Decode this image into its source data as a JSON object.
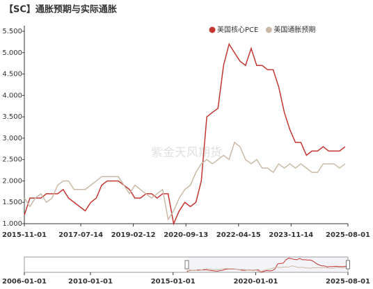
{
  "chart_data": {
    "type": "line",
    "title": "【SC】通胀预期与实际通胀",
    "watermark": "紫金天风期货",
    "x": [
      "2015-11-01",
      "2016-01-01",
      "2016-03-01",
      "2016-05-01",
      "2016-07-01",
      "2016-09-01",
      "2016-11-01",
      "2017-01-01",
      "2017-03-01",
      "2017-05-01",
      "2017-07-01",
      "2017-09-01",
      "2017-11-01",
      "2018-01-01",
      "2018-03-01",
      "2018-05-01",
      "2018-07-01",
      "2018-09-01",
      "2018-11-01",
      "2019-01-01",
      "2019-03-01",
      "2019-05-01",
      "2019-07-01",
      "2019-09-01",
      "2019-11-01",
      "2020-01-01",
      "2020-03-01",
      "2020-05-01",
      "2020-07-01",
      "2020-09-01",
      "2020-11-01",
      "2021-01-01",
      "2021-03-01",
      "2021-05-01",
      "2021-07-01",
      "2021-09-01",
      "2021-11-01",
      "2022-01-01",
      "2022-03-01",
      "2022-05-01",
      "2022-07-01",
      "2022-09-01",
      "2022-11-01",
      "2023-01-01",
      "2023-03-01",
      "2023-05-01",
      "2023-07-01",
      "2023-09-01",
      "2023-11-01",
      "2024-01-01",
      "2024-03-01",
      "2024-05-01",
      "2024-07-01",
      "2024-09-01",
      "2024-11-01",
      "2025-01-01",
      "2025-03-01",
      "2025-05-01",
      "2025-07-01"
    ],
    "series": [
      {
        "name": "美国核心PCE",
        "color": "#c23531",
        "values": [
          1.2,
          1.6,
          1.6,
          1.6,
          1.7,
          1.7,
          1.7,
          1.8,
          1.6,
          1.5,
          1.4,
          1.3,
          1.5,
          1.6,
          1.9,
          2.0,
          2.0,
          2.0,
          1.9,
          1.8,
          1.6,
          1.6,
          1.7,
          1.7,
          1.6,
          1.7,
          1.7,
          1.0,
          1.3,
          1.5,
          1.4,
          1.5,
          2.0,
          3.5,
          3.6,
          3.7,
          4.7,
          5.2,
          5.0,
          4.8,
          4.7,
          5.1,
          4.7,
          4.7,
          4.6,
          4.6,
          4.2,
          3.6,
          3.2,
          2.9,
          2.9,
          2.6,
          2.7,
          2.7,
          2.8,
          2.7,
          2.7,
          2.7,
          2.8
        ]
      },
      {
        "name": "美国通胀预期",
        "color": "#c9b9a6",
        "values": [
          1.6,
          1.4,
          1.6,
          1.7,
          1.5,
          1.6,
          1.9,
          2.0,
          2.0,
          1.8,
          1.8,
          1.8,
          1.9,
          2.0,
          2.1,
          2.1,
          2.1,
          2.1,
          1.9,
          1.7,
          1.9,
          1.8,
          1.7,
          1.6,
          1.7,
          1.8,
          1.1,
          1.3,
          1.6,
          1.8,
          1.9,
          2.2,
          2.4,
          2.5,
          2.4,
          2.5,
          2.6,
          2.5,
          2.9,
          2.8,
          2.5,
          2.4,
          2.5,
          2.3,
          2.3,
          2.2,
          2.4,
          2.3,
          2.4,
          2.3,
          2.4,
          2.3,
          2.2,
          2.2,
          2.4,
          2.4,
          2.4,
          2.3,
          2.4
        ]
      }
    ],
    "xlim": [
      "2015-11-01",
      "2025-08-01"
    ],
    "xticks": [
      "2015-11-01",
      "2017-07-14",
      "2019-02-12",
      "2020-09-13",
      "2022-04-15",
      "2023-11-14",
      "2025-08-01"
    ],
    "ylim": [
      1,
      5.5
    ],
    "yticks": [
      {
        "value": 1,
        "label": "1.000"
      },
      {
        "value": 1.5,
        "label": "1.500"
      },
      {
        "value": 2,
        "label": "2.000"
      },
      {
        "value": 2.5,
        "label": "2.500"
      },
      {
        "value": 3,
        "label": "3.000"
      },
      {
        "value": 3.5,
        "label": "3.500"
      },
      {
        "value": 4,
        "label": "4.000"
      },
      {
        "value": 4.5,
        "label": "4.500"
      },
      {
        "value": 5,
        "label": "5.000"
      },
      {
        "value": 5.5,
        "label": "5.500"
      }
    ],
    "slider": {
      "xlim": [
        "2006-01-01",
        "2025-08-01"
      ],
      "xticks": [
        "2006-01-01",
        "2010-01-01",
        "2015-01-01",
        "2020-01-01",
        "2025-08-01"
      ],
      "range": [
        "2015-11-01",
        "2025-08-01"
      ]
    }
  }
}
